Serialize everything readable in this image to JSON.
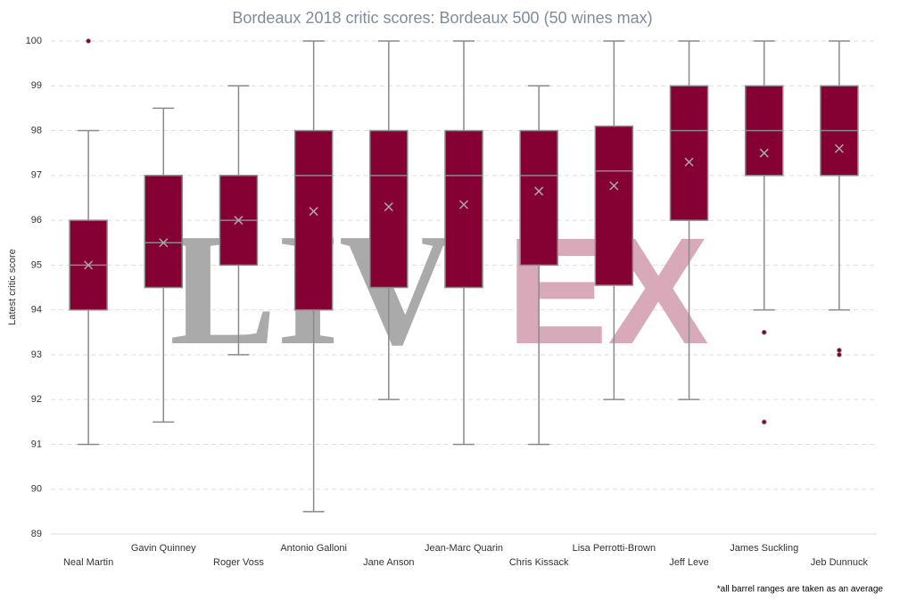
{
  "chart_data": {
    "type": "box",
    "title": "Bordeaux 2018 critic scores: Bordeaux 500 (50 wines max)",
    "y_label": "Latest critic score",
    "footnote": "*all barrel ranges are taken as an average",
    "watermark": [
      "LIV",
      "EX"
    ],
    "categories": [
      "Neal Martin",
      "Gavin Quinney",
      "Roger Voss",
      "Antonio Galloni",
      "Jane Anson",
      "Jean-Marc Quarin",
      "Chris Kissack",
      "Lisa Perrotti-Brown",
      "Jeff Leve",
      "James Suckling",
      "Jeb Dunnuck"
    ],
    "boxes": [
      {
        "min": 91,
        "q1": 94,
        "median": 95,
        "q3": 96,
        "max": 98,
        "mean": 95,
        "outliers": [
          100
        ]
      },
      {
        "min": 91.5,
        "q1": 94.5,
        "median": 95.5,
        "q3": 97,
        "max": 98.5,
        "mean": 95.5,
        "outliers": []
      },
      {
        "min": 93,
        "q1": 95,
        "median": 96,
        "q3": 97,
        "max": 99,
        "mean": 96,
        "outliers": []
      },
      {
        "min": 89.5,
        "q1": 94,
        "median": 97,
        "q3": 98,
        "max": 100,
        "mean": 96.2,
        "outliers": []
      },
      {
        "min": 92,
        "q1": 94.5,
        "median": 97,
        "q3": 98,
        "max": 100,
        "mean": 96.3,
        "outliers": []
      },
      {
        "min": 91,
        "q1": 94.5,
        "median": 97,
        "q3": 98,
        "max": 100,
        "mean": 96.35,
        "outliers": []
      },
      {
        "min": 91,
        "q1": 95,
        "median": 97,
        "q3": 98,
        "max": 99,
        "mean": 96.65,
        "outliers": []
      },
      {
        "min": 92,
        "q1": 94.55,
        "median": 97.1,
        "q3": 98.1,
        "max": 100,
        "mean": 96.77,
        "outliers": []
      },
      {
        "min": 92,
        "q1": 96,
        "median": 98,
        "q3": 99,
        "max": 100,
        "mean": 97.3,
        "outliers": []
      },
      {
        "min": 94,
        "q1": 97,
        "median": 98,
        "q3": 99,
        "max": 100,
        "mean": 97.5,
        "outliers": [
          93.5,
          91.5
        ]
      },
      {
        "min": 94,
        "q1": 97,
        "median": 98,
        "q3": 99,
        "max": 100,
        "mean": 97.6,
        "outliers": [
          93.1,
          93
        ]
      }
    ],
    "color": "#850033",
    "ylim": [
      89,
      100
    ],
    "yticks": [
      89,
      90,
      91,
      92,
      93,
      94,
      95,
      96,
      97,
      98,
      99,
      100
    ],
    "grid": true
  }
}
